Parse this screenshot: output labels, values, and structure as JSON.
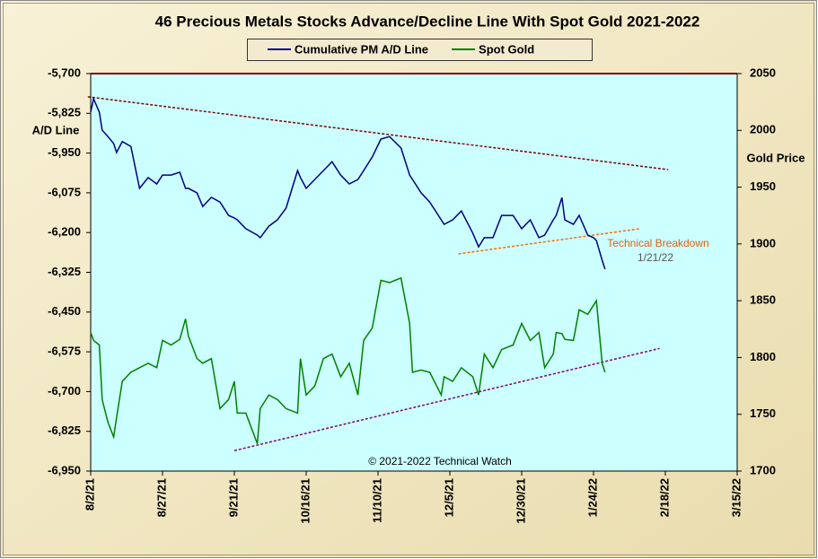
{
  "chart_data": {
    "type": "line",
    "title": "46 Precious Metals Stocks Advance/Decline Line With Spot Gold 2021-2022",
    "y_label": "A/D Line",
    "y2_label": "Gold Price",
    "legend": "top",
    "x": [
      "2021-08-02",
      "2021-08-03",
      "2021-08-05",
      "2021-08-06",
      "2021-08-08",
      "2021-08-10",
      "2021-08-11",
      "2021-08-13",
      "2021-08-16",
      "2021-08-19",
      "2021-08-22",
      "2021-08-25",
      "2021-08-27",
      "2021-08-30",
      "2021-09-02",
      "2021-09-04",
      "2021-09-05",
      "2021-09-08",
      "2021-09-10",
      "2021-09-13",
      "2021-09-16",
      "2021-09-19",
      "2021-09-21",
      "2021-09-22",
      "2021-09-25",
      "2021-09-29",
      "2021-09-30",
      "2021-10-03",
      "2021-10-06",
      "2021-10-09",
      "2021-10-13",
      "2021-10-14",
      "2021-10-16",
      "2021-10-19",
      "2021-10-22",
      "2021-10-25",
      "2021-10-28",
      "2021-10-31",
      "2021-11-03",
      "2021-11-05",
      "2021-11-08",
      "2021-11-11",
      "2021-11-14",
      "2021-11-18",
      "2021-11-21",
      "2021-11-22",
      "2021-11-25",
      "2021-11-28",
      "2021-12-02",
      "2021-12-03",
      "2021-12-06",
      "2021-12-09",
      "2021-12-13",
      "2021-12-15",
      "2021-12-17",
      "2021-12-20",
      "2021-12-23",
      "2021-12-27",
      "2021-12-30",
      "2022-01-02",
      "2022-01-05",
      "2022-01-07",
      "2022-01-10",
      "2022-01-11",
      "2022-01-13",
      "2022-01-14",
      "2022-01-17",
      "2022-01-19",
      "2022-01-22",
      "2022-01-24",
      "2022-01-25",
      "2022-01-27",
      "2022-01-28"
    ],
    "series": [
      {
        "name": "Cumulative PM A/D Line",
        "color": "#000080",
        "axis": "y",
        "values": [
          -5821,
          -5779,
          -5821,
          -5878,
          -5898,
          -5920,
          -5948,
          -5914,
          -5929,
          -6061,
          -6027,
          -6047,
          -6019,
          -6019,
          -6010,
          -6061,
          -6061,
          -6075,
          -6118,
          -6089,
          -6104,
          -6146,
          -6154,
          -6160,
          -6188,
          -6208,
          -6216,
          -6180,
          -6160,
          -6123,
          -6005,
          -6027,
          -6061,
          -6033,
          -6005,
          -5977,
          -6019,
          -6047,
          -6033,
          -6005,
          -5962,
          -5906,
          -5898,
          -5934,
          -6019,
          -6033,
          -6075,
          -6104,
          -6160,
          -6174,
          -6160,
          -6132,
          -6202,
          -6245,
          -6216,
          -6216,
          -6146,
          -6146,
          -6188,
          -6160,
          -6216,
          -6208,
          -6160,
          -6146,
          -6090,
          -6160,
          -6174,
          -6146,
          -6208,
          -6216,
          -6225,
          -6287,
          -6315
        ]
      },
      {
        "name": "Spot Gold",
        "color": "#008000",
        "axis": "y2",
        "values": [
          1822,
          1815,
          1811,
          1763,
          1743,
          1730,
          1747,
          1779,
          1787,
          1791,
          1795,
          1791,
          1815,
          1811,
          1816,
          1834,
          1819,
          1799,
          1795,
          1799,
          1755,
          1763,
          1779,
          1751,
          1751,
          1724,
          1755,
          1767,
          1763,
          1755,
          1751,
          1799,
          1767,
          1775,
          1799,
          1803,
          1783,
          1795,
          1767,
          1815,
          1826,
          1868,
          1866,
          1870,
          1830,
          1787,
          1789,
          1787,
          1767,
          1783,
          1779,
          1791,
          1783,
          1767,
          1803,
          1791,
          1807,
          1811,
          1830,
          1815,
          1822,
          1791,
          1803,
          1822,
          1821,
          1816,
          1815,
          1842,
          1838,
          1846,
          1850,
          1795,
          1787
        ]
      }
    ],
    "trendlines": [
      {
        "color": "#800000",
        "axis": "y",
        "x": [
          "2021-08-01",
          "2022-02-19"
        ],
        "values": [
          -5773,
          -6002
        ]
      },
      {
        "color": "#ff6600",
        "axis": "y",
        "x": [
          "2021-12-08",
          "2022-02-09"
        ],
        "values": [
          -6267,
          -6188
        ]
      },
      {
        "color": "#800080",
        "axis": "y2",
        "x": [
          "2021-09-21",
          "2022-02-16"
        ],
        "values": [
          1718,
          1808
        ]
      }
    ],
    "annotations": [
      "Technical Breakdown",
      "1/21/22",
      "© 2021-2022 Technical Watch"
    ],
    "xlim": [
      "2021-08-02",
      "2022-03-15"
    ],
    "xticks": [
      {
        "value": "2021-08-02",
        "label": "8/2/21"
      },
      {
        "value": "2021-08-27",
        "label": "8/27/21"
      },
      {
        "value": "2021-09-21",
        "label": "9/21/21"
      },
      {
        "value": "2021-10-16",
        "label": "10/16/21"
      },
      {
        "value": "2021-11-10",
        "label": "11/10/21"
      },
      {
        "value": "2021-12-05",
        "label": "12/5/21"
      },
      {
        "value": "2021-12-30",
        "label": "12/30/21"
      },
      {
        "value": "2022-01-24",
        "label": "1/24/22"
      },
      {
        "value": "2022-02-18",
        "label": "2/18/22"
      },
      {
        "value": "2022-03-15",
        "label": "3/15/22"
      }
    ],
    "ylim": [
      -6950,
      -5700
    ],
    "yticks": [
      {
        "value": -5700,
        "label": "-5,700"
      },
      {
        "value": -5825,
        "label": "-5,825"
      },
      {
        "value": -5950,
        "label": "-5,950"
      },
      {
        "value": -6075,
        "label": "-6,075"
      },
      {
        "value": -6200,
        "label": "-6,200"
      },
      {
        "value": -6325,
        "label": "-6,325"
      },
      {
        "value": -6450,
        "label": "-6,450"
      },
      {
        "value": -6575,
        "label": "-6,575"
      },
      {
        "value": -6700,
        "label": "-6,700"
      },
      {
        "value": -6825,
        "label": "-6,825"
      },
      {
        "value": -6950,
        "label": "-6,950"
      }
    ],
    "y2lim": [
      1700,
      2050
    ],
    "y2ticks": [
      1700,
      1750,
      1800,
      1850,
      1900,
      1950,
      2000,
      2050
    ]
  }
}
